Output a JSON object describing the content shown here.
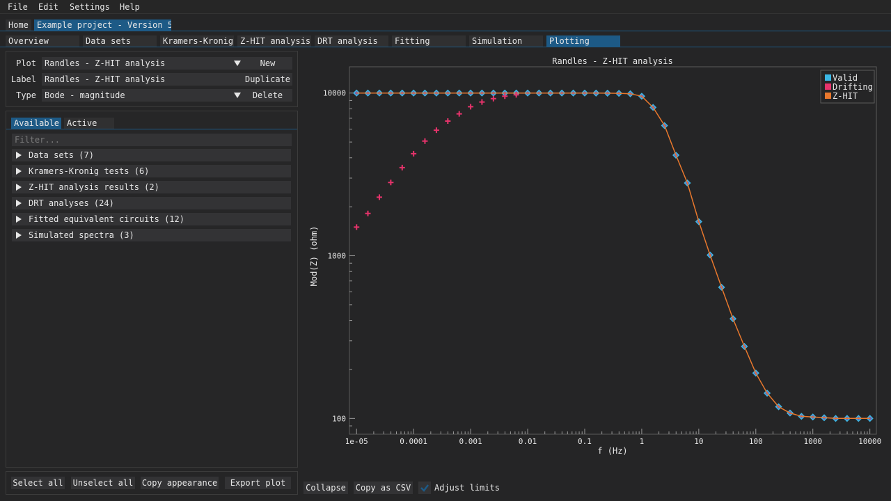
{
  "menu": [
    "File",
    "Edit",
    "Settings",
    "Help"
  ],
  "project_tabs": [
    "Home",
    "Example project - Version 5"
  ],
  "section_tabs": [
    "Overview",
    "Data sets",
    "Kramers-Kronig",
    "Z-HIT analysis",
    "DRT analysis",
    "Fitting",
    "Simulation",
    "Plotting"
  ],
  "active_section": "Plotting",
  "settings": {
    "plot_label": "Plot",
    "plot_value": "Randles - Z-HIT analysis",
    "label_label": "Label",
    "label_value": "Randles - Z-HIT analysis",
    "type_label": "Type",
    "type_value": "Bode - magnitude",
    "new_button": "New",
    "duplicate_button": "Duplicate",
    "delete_button": "Delete"
  },
  "list_tabs": [
    "Available",
    "Active"
  ],
  "filter_placeholder": "Filter...",
  "tree_items": [
    "Data sets (7)",
    "Kramers-Kronig tests (6)",
    "Z-HIT analysis results (2)",
    "DRT analyses (24)",
    "Fitted equivalent circuits (12)",
    "Simulated spectra (3)"
  ],
  "bottom_buttons": [
    "Select all",
    "Unselect all",
    "Copy appearance",
    "Export plot"
  ],
  "plot_buttons": {
    "collapse": "Collapse",
    "copy_csv": "Copy as CSV",
    "adjust_limits": "Adjust limits",
    "adjust_checked": true
  },
  "colors": {
    "accent": "#1d5a86",
    "valid": "#3bb8e6",
    "drifting": "#e6336b",
    "zhit": "#e8782d"
  },
  "chart_data": {
    "type": "scatter",
    "title": "Randles - Z-HIT analysis",
    "xlabel": "f (Hz)",
    "ylabel": "Mod(Z) (ohm)",
    "x_scale": "log",
    "y_scale": "log",
    "xlim": [
      7.5e-06,
      13000
    ],
    "ylim": [
      80,
      14500
    ],
    "x_ticks": [
      "1e-05",
      "0.0001",
      "0.001",
      "0.01",
      "0.1",
      "1",
      "10",
      "100",
      "1000",
      "10000"
    ],
    "y_ticks": [
      "100",
      "1000",
      "10000"
    ],
    "legend_position": "top-right",
    "series": [
      {
        "name": "Valid",
        "marker": "diamond",
        "color": "#3bb8e6",
        "x": [
          1e-05,
          1.58e-05,
          2.51e-05,
          3.98e-05,
          6.31e-05,
          0.0001,
          0.000158,
          0.000251,
          0.000398,
          0.000631,
          0.001,
          0.00158,
          0.00251,
          0.00398,
          0.00631,
          0.01,
          0.0158,
          0.0251,
          0.0398,
          0.0631,
          0.1,
          0.158,
          0.251,
          0.398,
          0.631,
          1,
          1.58,
          2.51,
          3.98,
          6.31,
          10,
          15.8,
          25.1,
          39.8,
          63.1,
          100,
          158,
          251,
          398,
          631,
          1000,
          1580,
          2510,
          3980,
          6310,
          10000
        ],
        "y": [
          10000,
          10000,
          10000,
          10000,
          10000,
          10000,
          10000,
          10000,
          10000,
          10000,
          10000,
          10000,
          10000,
          10000,
          10000,
          10000,
          10000,
          10000,
          10000,
          9999,
          9998,
          9994,
          9985,
          9960,
          9900,
          9560,
          8160,
          6310,
          4150,
          2800,
          1620,
          1010,
          640,
          410,
          277,
          190,
          143,
          118,
          108,
          103,
          102,
          101,
          100,
          100,
          100,
          100
        ]
      },
      {
        "name": "Drifting",
        "marker": "plus",
        "color": "#e6336b",
        "x": [
          1e-05,
          1.58e-05,
          2.51e-05,
          3.98e-05,
          6.31e-05,
          0.0001,
          0.000158,
          0.000251,
          0.000398,
          0.000631,
          0.001,
          0.00158,
          0.00251,
          0.00398,
          0.00631
        ],
        "y": [
          1500,
          1820,
          2290,
          2820,
          3480,
          4240,
          5070,
          5910,
          6730,
          7450,
          8240,
          8810,
          9240,
          9570,
          9760
        ]
      },
      {
        "name": "Z-HIT",
        "marker": "line",
        "color": "#e8782d",
        "x": [
          1e-05,
          1.58e-05,
          2.51e-05,
          3.98e-05,
          6.31e-05,
          0.0001,
          0.000158,
          0.000251,
          0.000398,
          0.000631,
          0.001,
          0.00158,
          0.00251,
          0.00398,
          0.00631,
          0.01,
          0.0158,
          0.0251,
          0.0398,
          0.0631,
          0.1,
          0.158,
          0.251,
          0.398,
          0.631,
          1,
          1.58,
          2.51,
          3.98,
          6.31,
          10,
          15.8,
          25.1,
          39.8,
          63.1,
          100,
          158,
          251,
          398,
          631,
          1000,
          1580,
          2510,
          3980,
          6310,
          10000
        ],
        "y": [
          10000,
          10000,
          10000,
          10000,
          10000,
          10000,
          10000,
          10000,
          10000,
          10000,
          10000,
          10000,
          10000,
          10000,
          10000,
          10000,
          10000,
          10000,
          10000,
          9999,
          9998,
          9994,
          9985,
          9960,
          9900,
          9560,
          8160,
          6310,
          4150,
          2800,
          1620,
          1010,
          640,
          410,
          277,
          190,
          143,
          118,
          108,
          103,
          102,
          101,
          100,
          100,
          100,
          100
        ]
      }
    ]
  }
}
